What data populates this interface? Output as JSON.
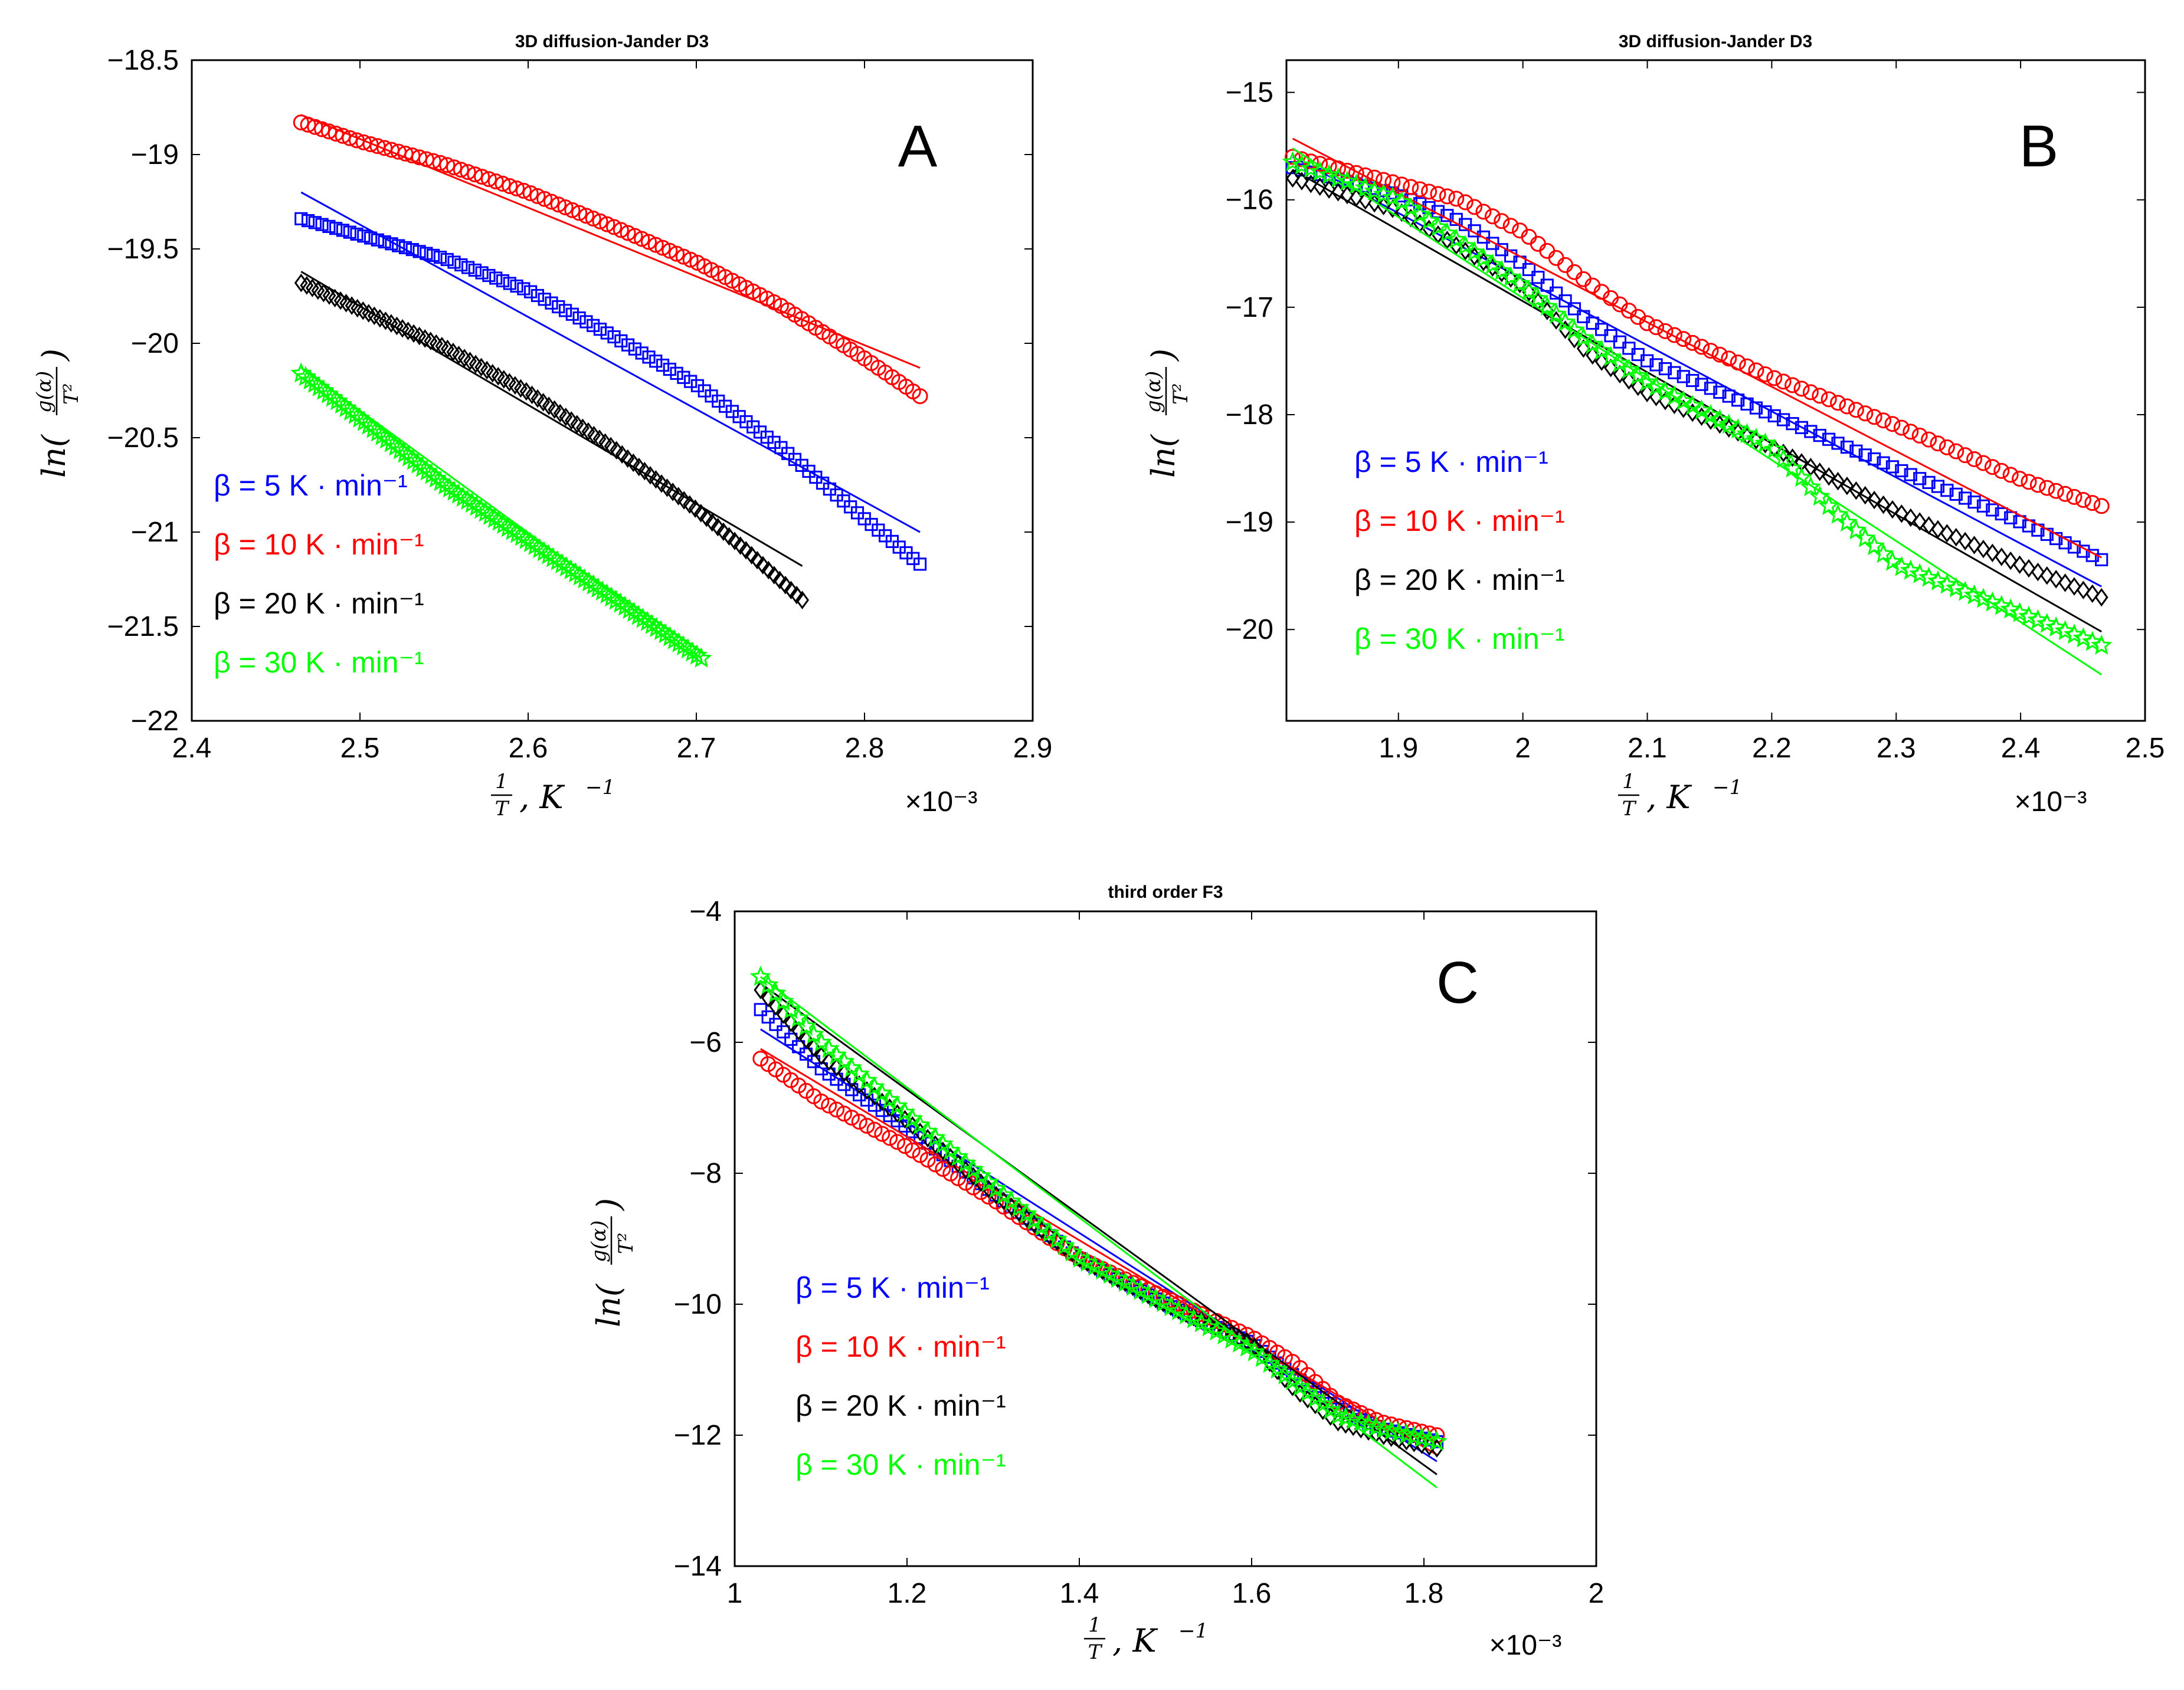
{
  "chart_data": [
    {
      "type": "scatter",
      "panel": "A",
      "title": "3D diffusion-Jander D3",
      "xlabel": "1/T, K^-1",
      "ylabel": "ln(g(α)/T²)",
      "x_multiplier": "×10⁻³",
      "xlim": [
        2.4,
        2.9
      ],
      "ylim": [
        -22,
        -18.5
      ],
      "xticks": [
        "2.4",
        "2.5",
        "2.6",
        "2.7",
        "2.8",
        "2.9"
      ],
      "yticks": [
        "−18.5",
        "−19",
        "−19.5",
        "−20",
        "−20.5",
        "−21",
        "−21.5",
        "−22"
      ],
      "legend": [
        {
          "label": "β = 5 K · min⁻¹",
          "color": "#0000ff"
        },
        {
          "label": "β = 10 K · min⁻¹",
          "color": "#ff0000"
        },
        {
          "label": "β = 20 K · min⁻¹",
          "color": "#000000"
        },
        {
          "label": "β = 30 K · min⁻¹",
          "color": "#00ff00"
        }
      ],
      "series": [
        {
          "name": "β = 5 K · min⁻¹",
          "color": "#0000ff",
          "marker": "square",
          "x": [
            2.465,
            2.55,
            2.6,
            2.65,
            2.7,
            2.75,
            2.8,
            2.833
          ],
          "y": [
            -19.34,
            -19.55,
            -19.72,
            -19.96,
            -20.22,
            -20.55,
            -20.93,
            -21.17
          ],
          "fit": {
            "x": [
              2.465,
              2.833
            ],
            "y": [
              -19.2,
              -21.0
            ]
          }
        },
        {
          "name": "β = 10 K · min⁻¹",
          "color": "#ff0000",
          "marker": "circle",
          "x": [
            2.465,
            2.5,
            2.55,
            2.6,
            2.65,
            2.7,
            2.75,
            2.8,
            2.833
          ],
          "y": [
            -18.83,
            -18.93,
            -19.05,
            -19.2,
            -19.38,
            -19.57,
            -19.8,
            -20.08,
            -20.28
          ],
          "fit": {
            "x": [
              2.465,
              2.833
            ],
            "y": [
              -18.79,
              -20.13
            ]
          }
        },
        {
          "name": "β = 20 K · min⁻¹",
          "color": "#000000",
          "marker": "diamond",
          "x": [
            2.465,
            2.5,
            2.55,
            2.6,
            2.65,
            2.7,
            2.73,
            2.763
          ],
          "y": [
            -19.68,
            -19.82,
            -20.02,
            -20.26,
            -20.55,
            -20.88,
            -21.1,
            -21.36
          ],
          "fit": {
            "x": [
              2.465,
              2.763
            ],
            "y": [
              -19.62,
              -21.18
            ]
          }
        },
        {
          "name": "β = 30 K · min⁻¹",
          "color": "#00ff00",
          "marker": "star",
          "x": [
            2.465,
            2.5,
            2.55,
            2.6,
            2.65,
            2.703
          ],
          "y": [
            -20.16,
            -20.4,
            -20.75,
            -21.05,
            -21.35,
            -21.67
          ],
          "fit": {
            "x": [
              2.465,
              2.703
            ],
            "y": [
              -20.13,
              -21.67
            ]
          }
        }
      ]
    },
    {
      "type": "scatter",
      "panel": "B",
      "title": "3D diffusion-Jander D3",
      "xlabel": "1/T, K^-1",
      "ylabel": "ln(g(α)/T²)",
      "x_multiplier": "×10⁻³",
      "xlim": [
        1.81,
        2.5
      ],
      "ylim": [
        -20.85,
        -14.7
      ],
      "xticks": [
        "1.9",
        "2",
        "2.1",
        "2.2",
        "2.3",
        "2.4",
        "2.5"
      ],
      "yticks": [
        "−15",
        "−16",
        "−17",
        "−18",
        "−19",
        "−20"
      ],
      "legend": [
        {
          "label": "β = 5 K · min⁻¹",
          "color": "#0000ff"
        },
        {
          "label": "β = 10 K · min⁻¹",
          "color": "#ff0000"
        },
        {
          "label": "β = 20 K · min⁻¹",
          "color": "#000000"
        },
        {
          "label": "β = 30 K · min⁻¹",
          "color": "#00ff00"
        }
      ],
      "series": [
        {
          "name": "β = 5 K · min⁻¹",
          "color": "#0000ff",
          "marker": "square",
          "x": [
            1.815,
            1.9,
            1.95,
            2.0,
            2.05,
            2.1,
            2.2,
            2.3,
            2.4,
            2.465
          ],
          "y": [
            -15.7,
            -15.95,
            -16.2,
            -16.6,
            -17.1,
            -17.5,
            -18.0,
            -18.5,
            -19.0,
            -19.35
          ],
          "fit": {
            "x": [
              1.815,
              2.465
            ],
            "y": [
              -15.6,
              -19.6
            ]
          }
        },
        {
          "name": "β = 10 K · min⁻¹",
          "color": "#ff0000",
          "marker": "circle",
          "x": [
            1.815,
            1.9,
            1.95,
            2.0,
            2.05,
            2.1,
            2.2,
            2.3,
            2.4,
            2.465
          ],
          "y": [
            -15.6,
            -15.85,
            -16.0,
            -16.3,
            -16.75,
            -17.15,
            -17.65,
            -18.1,
            -18.6,
            -18.85
          ],
          "fit": {
            "x": [
              1.815,
              2.465
            ],
            "y": [
              -15.43,
              -19.33
            ]
          }
        },
        {
          "name": "β = 20 K · min⁻¹",
          "color": "#000000",
          "marker": "diamond",
          "x": [
            1.815,
            1.9,
            2.0,
            2.05,
            2.1,
            2.2,
            2.3,
            2.4,
            2.465
          ],
          "y": [
            -15.8,
            -16.1,
            -16.8,
            -17.4,
            -17.8,
            -18.3,
            -18.9,
            -19.4,
            -19.7
          ],
          "fit": {
            "x": [
              1.815,
              2.465
            ],
            "y": [
              -15.72,
              -20.02
            ]
          }
        },
        {
          "name": "β = 30 K · min⁻¹",
          "color": "#00ff00",
          "marker": "star",
          "x": [
            1.815,
            1.9,
            2.0,
            2.05,
            2.1,
            2.2,
            2.25,
            2.3,
            2.4,
            2.465
          ],
          "y": [
            -15.65,
            -16.0,
            -16.8,
            -17.3,
            -17.7,
            -18.3,
            -18.9,
            -19.4,
            -19.85,
            -20.15
          ],
          "fit": {
            "x": [
              1.815,
              2.465
            ],
            "y": [
              -15.52,
              -20.42
            ]
          }
        }
      ]
    },
    {
      "type": "scatter",
      "panel": "C",
      "title": "third order F3",
      "xlabel": "1/T, K^-1",
      "ylabel": "ln(g(α)/T²)",
      "x_multiplier": "×10⁻³",
      "xlim": [
        1,
        2
      ],
      "ylim": [
        -14,
        -4
      ],
      "xticks": [
        "1",
        "1.2",
        "1.4",
        "1.6",
        "1.8",
        "2"
      ],
      "yticks": [
        "−4",
        "−6",
        "−8",
        "−10",
        "−12",
        "−14"
      ],
      "legend": [
        {
          "label": "β = 5 K · min⁻¹",
          "color": "#0000ff"
        },
        {
          "label": "β = 10 K · min⁻¹",
          "color": "#ff0000"
        },
        {
          "label": "β = 20 K · min⁻¹",
          "color": "#000000"
        },
        {
          "label": "β = 30 K · min⁻¹",
          "color": "#00ff00"
        }
      ],
      "series": [
        {
          "name": "β = 5 K · min⁻¹",
          "color": "#0000ff",
          "marker": "square",
          "x": [
            1.03,
            1.1,
            1.2,
            1.3,
            1.4,
            1.5,
            1.6,
            1.65,
            1.7,
            1.75,
            1.815
          ],
          "y": [
            -5.5,
            -6.4,
            -7.3,
            -8.3,
            -9.3,
            -10.0,
            -10.6,
            -11.1,
            -11.6,
            -11.9,
            -12.1
          ],
          "fit": {
            "x": [
              1.03,
              1.815
            ],
            "y": [
              -5.8,
              -12.4
            ]
          }
        },
        {
          "name": "β = 10 K · min⁻¹",
          "color": "#ff0000",
          "marker": "circle",
          "x": [
            1.03,
            1.1,
            1.2,
            1.3,
            1.4,
            1.5,
            1.6,
            1.65,
            1.7,
            1.75,
            1.815
          ],
          "y": [
            -6.25,
            -6.9,
            -7.6,
            -8.4,
            -9.3,
            -9.9,
            -10.5,
            -10.9,
            -11.5,
            -11.8,
            -12.0
          ],
          "fit": {
            "x": [
              1.03,
              1.815
            ],
            "y": [
              -6.1,
              -12.3
            ]
          }
        },
        {
          "name": "β = 20 K · min⁻¹",
          "color": "#000000",
          "marker": "diamond",
          "x": [
            1.03,
            1.1,
            1.2,
            1.3,
            1.4,
            1.5,
            1.6,
            1.65,
            1.7,
            1.75,
            1.815
          ],
          "y": [
            -5.2,
            -6.2,
            -7.2,
            -8.3,
            -9.3,
            -10.0,
            -10.6,
            -11.3,
            -11.8,
            -12.0,
            -12.2
          ],
          "fit": {
            "x": [
              1.03,
              1.815
            ],
            "y": [
              -5.1,
              -12.6
            ]
          }
        },
        {
          "name": "β = 30 K · min⁻¹",
          "color": "#00ff00",
          "marker": "star",
          "x": [
            1.03,
            1.1,
            1.2,
            1.3,
            1.4,
            1.5,
            1.6,
            1.65,
            1.7,
            1.75,
            1.815
          ],
          "y": [
            -5.0,
            -6.0,
            -7.1,
            -8.2,
            -9.3,
            -10.0,
            -10.7,
            -11.2,
            -11.7,
            -11.9,
            -12.1
          ],
          "fit": {
            "x": [
              1.03,
              1.815
            ],
            "y": [
              -5.0,
              -12.8
            ]
          }
        }
      ]
    }
  ]
}
